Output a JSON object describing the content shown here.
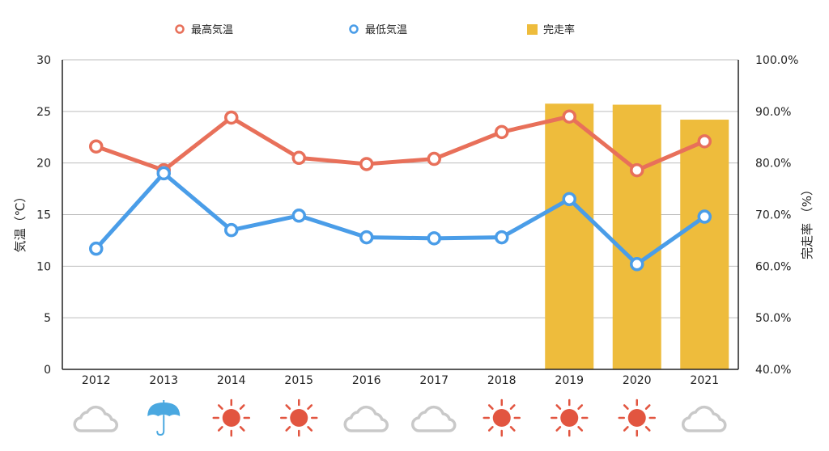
{
  "chart_data": {
    "type": "bar+line",
    "categories": [
      "2012",
      "2013",
      "2014",
      "2015",
      "2016",
      "2017",
      "2018",
      "2019",
      "2020",
      "2021"
    ],
    "series": [
      {
        "name": "最高気温",
        "type": "line",
        "axis": "left",
        "color": "#e8705a",
        "values": [
          21.6,
          19.3,
          24.4,
          20.5,
          19.9,
          20.4,
          23.0,
          24.5,
          19.3,
          22.1
        ]
      },
      {
        "name": "最低気温",
        "type": "line",
        "axis": "left",
        "color": "#4a9de8",
        "values": [
          11.7,
          19.0,
          13.5,
          14.9,
          12.8,
          12.7,
          12.8,
          16.5,
          10.2,
          14.8
        ]
      },
      {
        "name": "完走率",
        "type": "bar",
        "axis": "right",
        "color": "#eebc3c",
        "values": [
          null,
          null,
          null,
          null,
          null,
          null,
          null,
          91.5,
          91.3,
          88.4
        ]
      }
    ],
    "ylabel_left": "気温（℃）",
    "ylabel_right": "完走率 （%）",
    "ylim_left": [
      0,
      30
    ],
    "ylim_right": [
      40,
      100
    ],
    "yticks_left": [
      "0",
      "5",
      "10",
      "15",
      "20",
      "25",
      "30"
    ],
    "yticks_right": [
      "40.0%",
      "50.0%",
      "60.0%",
      "70.0%",
      "80.0%",
      "90.0%",
      "100.0%"
    ],
    "grid": true,
    "legend_position": "top",
    "weather_icons": [
      "cloud-icon",
      "umbrella-icon",
      "sun-icon",
      "sun-icon",
      "cloud-icon",
      "cloud-icon",
      "sun-icon",
      "sun-icon",
      "sun-icon",
      "cloud-icon"
    ]
  }
}
